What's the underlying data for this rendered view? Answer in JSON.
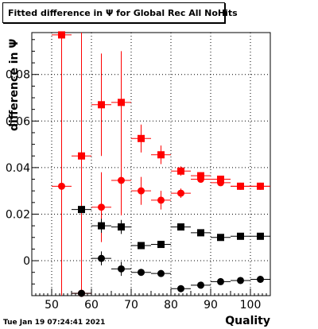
{
  "chart_data": {
    "type": "scatter",
    "title": "Fitted difference in  Ψ  for Global Rec All NoHits",
    "xlabel": "Quality",
    "ylabel": "difference in  Ψ",
    "xlim": [
      45,
      105
    ],
    "ylim": [
      -0.015,
      0.098
    ],
    "x_ticks": [
      50,
      60,
      70,
      80,
      90,
      100
    ],
    "y_ticks": [
      0,
      0.02,
      0.04,
      0.06,
      0.08
    ],
    "grid": true,
    "series": [
      {
        "color": "#ff0000",
        "marker": "square",
        "points": [
          {
            "x": 52.5,
            "y": 0.097,
            "xerr": 2.5,
            "yerr": 0.05
          },
          {
            "x": 57.5,
            "y": 0.045,
            "xerr": 2.5,
            "yerr": 0.06
          },
          {
            "x": 62.5,
            "y": 0.067,
            "xerr": 2.5,
            "yerr": 0.022
          },
          {
            "x": 67.5,
            "y": 0.068,
            "xerr": 2.5,
            "yerr": 0.022
          },
          {
            "x": 72.5,
            "y": 0.0525,
            "xerr": 2.5,
            "yerr": 0.006
          },
          {
            "x": 77.5,
            "y": 0.0455,
            "xerr": 2.5,
            "yerr": 0.004
          },
          {
            "x": 82.5,
            "y": 0.0385,
            "xerr": 2.5,
            "yerr": 0.002
          },
          {
            "x": 87.5,
            "y": 0.0365,
            "xerr": 2.5,
            "yerr": 0.0015
          },
          {
            "x": 92.5,
            "y": 0.035,
            "xerr": 2.5,
            "yerr": 0.001
          },
          {
            "x": 97.5,
            "y": 0.032,
            "xerr": 2.5,
            "yerr": 0.0008
          },
          {
            "x": 102.5,
            "y": 0.032,
            "xerr": 2.5,
            "yerr": 0.0008
          }
        ]
      },
      {
        "color": "#ff0000",
        "marker": "circle",
        "points": [
          {
            "x": 52.5,
            "y": 0.032,
            "xerr": 2.5,
            "yerr": 0.05
          },
          {
            "x": 57.5,
            "y": -0.014,
            "xerr": 2.5,
            "yerr": 0.06
          },
          {
            "x": 62.5,
            "y": 0.023,
            "xerr": 2.5,
            "yerr": 0.015
          },
          {
            "x": 67.5,
            "y": 0.0345,
            "xerr": 2.5,
            "yerr": 0.015
          },
          {
            "x": 72.5,
            "y": 0.03,
            "xerr": 2.5,
            "yerr": 0.006
          },
          {
            "x": 77.5,
            "y": 0.026,
            "xerr": 2.5,
            "yerr": 0.004
          },
          {
            "x": 82.5,
            "y": 0.029,
            "xerr": 2.5,
            "yerr": 0.002
          },
          {
            "x": 87.5,
            "y": 0.035,
            "xerr": 2.5,
            "yerr": 0.0015
          },
          {
            "x": 92.5,
            "y": 0.0335,
            "xerr": 2.5,
            "yerr": 0.001
          },
          {
            "x": 97.5,
            "y": 0.032,
            "xerr": 2.5,
            "yerr": 0.0008
          },
          {
            "x": 102.5,
            "y": 0.032,
            "xerr": 2.5,
            "yerr": 0.0008
          }
        ]
      },
      {
        "color": "#000000",
        "marker": "square",
        "points": [
          {
            "x": 57.5,
            "y": 0.022,
            "xerr": 2.5,
            "yerr": 0.0
          },
          {
            "x": 62.5,
            "y": 0.015,
            "xerr": 2.5,
            "yerr": 0.003
          },
          {
            "x": 67.5,
            "y": 0.0145,
            "xerr": 2.5,
            "yerr": 0.003
          },
          {
            "x": 72.5,
            "y": 0.0065,
            "xerr": 2.5,
            "yerr": 0.001
          },
          {
            "x": 77.5,
            "y": 0.007,
            "xerr": 2.5,
            "yerr": 0.001
          },
          {
            "x": 82.5,
            "y": 0.0145,
            "xerr": 2.5,
            "yerr": 0.0006
          },
          {
            "x": 87.5,
            "y": 0.012,
            "xerr": 2.5,
            "yerr": 0.0005
          },
          {
            "x": 92.5,
            "y": 0.01,
            "xerr": 2.5,
            "yerr": 0.0004
          },
          {
            "x": 97.5,
            "y": 0.0105,
            "xerr": 2.5,
            "yerr": 0.0004
          },
          {
            "x": 102.5,
            "y": 0.0105,
            "xerr": 2.5,
            "yerr": 0.0004
          }
        ]
      },
      {
        "color": "#000000",
        "marker": "circle",
        "points": [
          {
            "x": 57.5,
            "y": -0.014,
            "xerr": 2.5,
            "yerr": 0.0
          },
          {
            "x": 62.5,
            "y": 0.001,
            "xerr": 2.5,
            "yerr": 0.003
          },
          {
            "x": 67.5,
            "y": -0.0035,
            "xerr": 2.5,
            "yerr": 0.003
          },
          {
            "x": 72.5,
            "y": -0.005,
            "xerr": 2.5,
            "yerr": 0.001
          },
          {
            "x": 77.5,
            "y": -0.0055,
            "xerr": 2.5,
            "yerr": 0.001
          },
          {
            "x": 82.5,
            "y": -0.012,
            "xerr": 2.5,
            "yerr": 0.0006
          },
          {
            "x": 87.5,
            "y": -0.0105,
            "xerr": 2.5,
            "yerr": 0.0005
          },
          {
            "x": 92.5,
            "y": -0.009,
            "xerr": 2.5,
            "yerr": 0.0004
          },
          {
            "x": 97.5,
            "y": -0.0085,
            "xerr": 2.5,
            "yerr": 0.0004
          },
          {
            "x": 102.5,
            "y": -0.008,
            "xerr": 2.5,
            "yerr": 0.0004
          }
        ]
      }
    ]
  },
  "footer": {
    "timestamp": "Tue Jan 19 07:24:41 2021"
  }
}
